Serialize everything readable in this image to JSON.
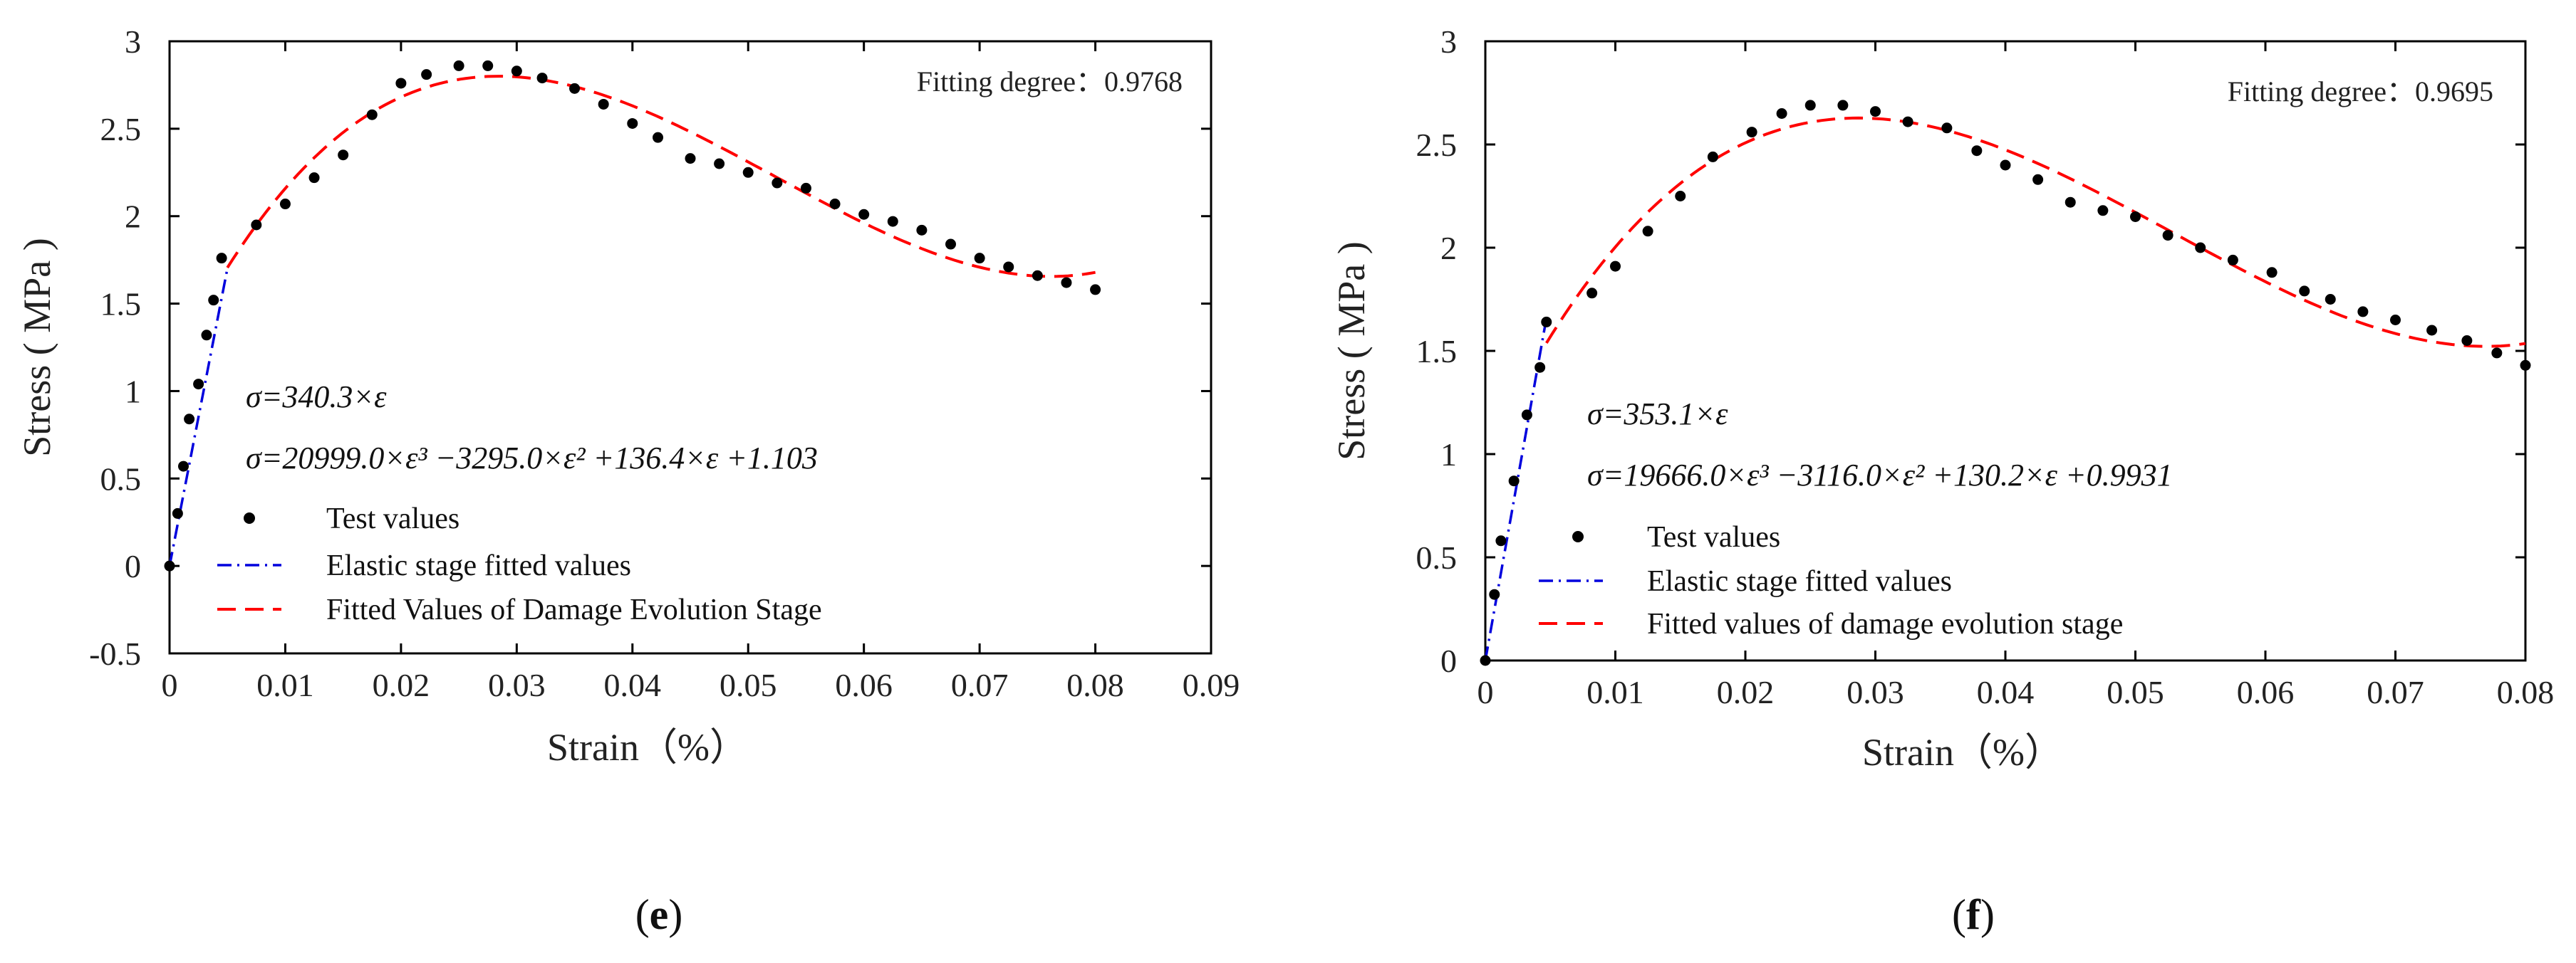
{
  "chart_data": [
    {
      "type": "scatter",
      "panel_label": "(e)",
      "panel_letter": "e",
      "xlabel": "Strain（%）",
      "ylabel": "Stress ( MPa )",
      "xlim": [
        0,
        0.09
      ],
      "ylim": [
        -0.5,
        3
      ],
      "xticks": [
        "0",
        "0.01",
        "0.02",
        "0.03",
        "0.04",
        "0.05",
        "0.06",
        "0.07",
        "0.08",
        "0.09"
      ],
      "yticks": [
        "-0.5",
        "0",
        "0.5",
        "1",
        "1.5",
        "2",
        "2.5",
        "3"
      ],
      "fit_note": "Fitting degree：0.9768",
      "eq_elastic": "σ=340.3×ε",
      "eq_damage": "σ=20999.0×ε³ −3295.0×ε² +136.4×ε +1.103",
      "legend": [
        "Test values",
        "Elastic stage fitted values",
        "Fitted Values of Damage Evolution Stage"
      ],
      "colors": {
        "test": "#000000",
        "elastic": "#0000dd",
        "damage": "#ff0000"
      },
      "elastic_fit": {
        "slope": 340.3,
        "x_range": [
          0,
          0.005
        ]
      },
      "damage_fit": {
        "coeffs": [
          20999.0,
          -3295.0,
          136.4,
          1.103
        ],
        "x_range": [
          0.005,
          0.08
        ]
      },
      "series": [
        {
          "name": "Test values",
          "x": [
            0,
            0.0007,
            0.0012,
            0.0017,
            0.0025,
            0.0032,
            0.0038,
            0.0045,
            0.0075,
            0.01,
            0.0125,
            0.015,
            0.0175,
            0.02,
            0.0222,
            0.025,
            0.0275,
            0.03,
            0.0322,
            0.035,
            0.0375,
            0.04,
            0.0422,
            0.045,
            0.0475,
            0.05,
            0.0525,
            0.055,
            0.0575,
            0.06,
            0.0625,
            0.065,
            0.0675,
            0.07,
            0.0725,
            0.075,
            0.0775,
            0.08
          ],
          "y": [
            0,
            0.3,
            0.57,
            0.84,
            1.04,
            1.32,
            1.52,
            1.76,
            1.95,
            2.07,
            2.22,
            2.35,
            2.58,
            2.76,
            2.81,
            2.86,
            2.86,
            2.83,
            2.79,
            2.73,
            2.64,
            2.53,
            2.45,
            2.33,
            2.3,
            2.25,
            2.19,
            2.16,
            2.07,
            2.01,
            1.97,
            1.92,
            1.84,
            1.76,
            1.71,
            1.66,
            1.62,
            1.58
          ]
        }
      ]
    },
    {
      "type": "scatter",
      "panel_label": "(f)",
      "panel_letter": "f",
      "xlabel": "Strain（%）",
      "ylabel": "Stress ( MPa )",
      "xlim": [
        0,
        0.08
      ],
      "ylim": [
        0,
        3
      ],
      "xticks": [
        "0",
        "0.01",
        "0.02",
        "0.03",
        "0.04",
        "0.05",
        "0.06",
        "0.07",
        "0.08"
      ],
      "yticks": [
        "0",
        "0.5",
        "1",
        "1.5",
        "2",
        "2.5",
        "3"
      ],
      "fit_note": "Fitting degree：0.9695",
      "eq_elastic": "σ=353.1×ε",
      "eq_damage": "σ=19666.0×ε³ −3116.0×ε² +130.2×ε +0.9931",
      "legend": [
        "Test values",
        "Elastic stage fitted values",
        "Fitted values of damage evolution stage"
      ],
      "colors": {
        "test": "#000000",
        "elastic": "#0000dd",
        "damage": "#ff0000"
      },
      "elastic_fit": {
        "slope": 353.1,
        "x_range": [
          0,
          0.0047
        ]
      },
      "damage_fit": {
        "coeffs": [
          19666.0,
          -3116.0,
          130.2,
          0.9931
        ],
        "x_range": [
          0.0047,
          0.08
        ]
      },
      "series": [
        {
          "name": "Test values",
          "x": [
            0,
            0.0007,
            0.0012,
            0.0022,
            0.0032,
            0.0042,
            0.0047,
            0.0082,
            0.01,
            0.0125,
            0.015,
            0.0175,
            0.0205,
            0.0228,
            0.025,
            0.0275,
            0.03,
            0.0325,
            0.0355,
            0.0378,
            0.04,
            0.0425,
            0.045,
            0.0475,
            0.05,
            0.0525,
            0.055,
            0.0575,
            0.0605,
            0.063,
            0.065,
            0.0675,
            0.07,
            0.0728,
            0.0755,
            0.0778,
            0.08
          ],
          "y": [
            0,
            0.32,
            0.58,
            0.87,
            1.19,
            1.42,
            1.64,
            1.78,
            1.91,
            2.08,
            2.25,
            2.44,
            2.56,
            2.65,
            2.69,
            2.69,
            2.66,
            2.61,
            2.58,
            2.47,
            2.4,
            2.33,
            2.22,
            2.18,
            2.15,
            2.06,
            2.0,
            1.94,
            1.88,
            1.79,
            1.75,
            1.69,
            1.65,
            1.6,
            1.55,
            1.49,
            1.43
          ]
        }
      ]
    }
  ]
}
